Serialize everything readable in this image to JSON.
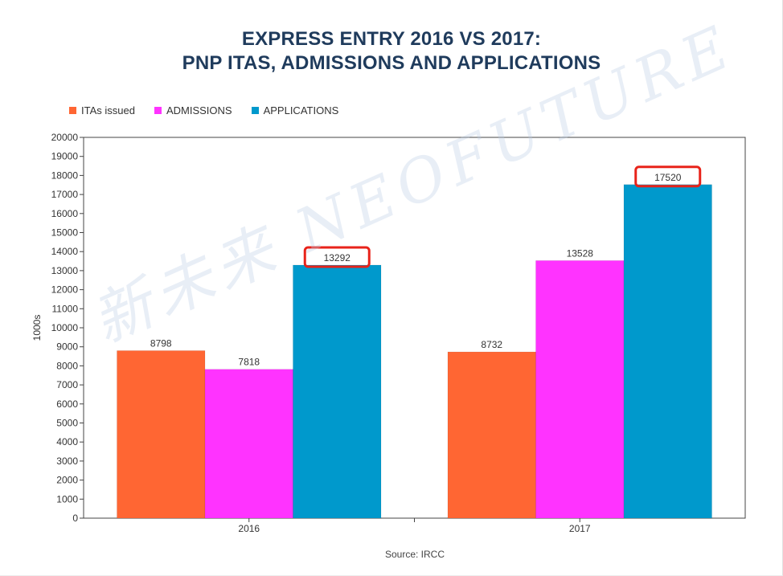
{
  "title": {
    "line1": "EXPRESS ENTRY 2016 VS 2017:",
    "line2": "PNP ITAS, ADMISSIONS AND APPLICATIONS"
  },
  "source": "Source: IRCC",
  "watermark": "新未来 NEOFUTURE",
  "chart_data": {
    "type": "bar",
    "title": "EXPRESS ENTRY 2016 VS 2017: PNP ITAS, ADMISSIONS AND APPLICATIONS",
    "xlabel": "",
    "ylabel": "1000s",
    "ylim": [
      0,
      20000
    ],
    "yticks": [
      0,
      1000,
      2000,
      3000,
      4000,
      5000,
      6000,
      7000,
      8000,
      9000,
      10000,
      11000,
      12000,
      13000,
      14000,
      15000,
      16000,
      17000,
      18000,
      19000,
      20000
    ],
    "categories": [
      "2016",
      "2017"
    ],
    "series": [
      {
        "name": "ITAs issued",
        "color": "#ff6633",
        "values": [
          8798,
          8732
        ]
      },
      {
        "name": "ADMISSIONS",
        "color": "#ff33ff",
        "values": [
          7818,
          13528
        ]
      },
      {
        "name": "APPLICATIONS",
        "color": "#0099cc",
        "values": [
          13292,
          17520
        ]
      }
    ],
    "highlighted": [
      {
        "series": "APPLICATIONS",
        "category": "2016",
        "color": "#e8231a"
      },
      {
        "series": "APPLICATIONS",
        "category": "2017",
        "color": "#e8231a"
      }
    ],
    "legend_position": "top-left",
    "grid": false
  }
}
